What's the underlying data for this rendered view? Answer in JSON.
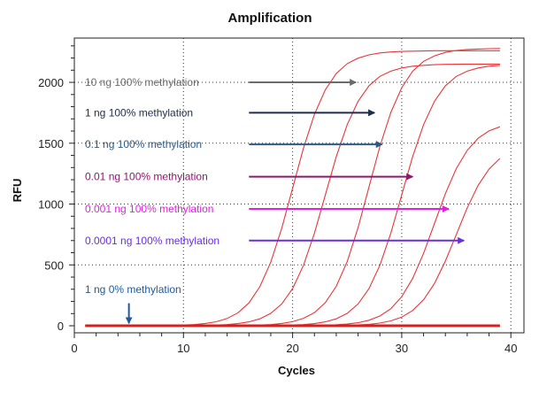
{
  "chart_data": {
    "type": "line",
    "title": "Amplification",
    "xlabel": "Cycles",
    "ylabel": "RFU",
    "xlim": [
      0,
      41.2
    ],
    "ylim": [
      -58,
      2364
    ],
    "xticks": [
      0,
      10,
      20,
      30,
      40
    ],
    "yticks": [
      0,
      500,
      1000,
      1500,
      2000
    ],
    "grid": "dotted",
    "line_color": "#e8363a",
    "baseline_color": "#d42020",
    "x": [
      1,
      2,
      3,
      4,
      5,
      6,
      7,
      8,
      9,
      10,
      11,
      12,
      13,
      14,
      15,
      16,
      17,
      18,
      19,
      20,
      21,
      22,
      23,
      24,
      25,
      26,
      27,
      28,
      29,
      30,
      31,
      32,
      33,
      34,
      35,
      36,
      37,
      38,
      39
    ],
    "series": [
      {
        "values": [
          0,
          0,
          0,
          0,
          0,
          0,
          0,
          0,
          0,
          6,
          10,
          19,
          33,
          60,
          107,
          188,
          321,
          522,
          800,
          1130,
          1460,
          1738,
          1939,
          2072,
          2154,
          2199,
          2226,
          2242,
          2250,
          2254,
          2256,
          2258,
          2260,
          2260,
          2260,
          2260,
          2260,
          2260,
          2260
        ]
      },
      {
        "values": [
          0,
          0,
          0,
          0,
          0,
          0,
          0,
          0,
          0,
          0,
          0,
          0,
          6,
          10,
          18,
          32,
          57,
          102,
          179,
          305,
          497,
          761,
          1075,
          1389,
          1653,
          1845,
          1972,
          2049,
          2092,
          2118,
          2133,
          2140,
          2145,
          2148,
          2149,
          2150,
          2150,
          2150,
          2150
        ]
      },
      {
        "values": [
          0,
          0,
          0,
          0,
          0,
          0,
          0,
          0,
          0,
          0,
          0,
          0,
          0,
          0,
          0,
          0,
          6,
          10,
          19,
          34,
          61,
          108,
          190,
          324,
          527,
          807,
          1140,
          1473,
          1753,
          1956,
          2091,
          2173,
          2218,
          2246,
          2262,
          2270,
          2274,
          2277,
          2278
        ]
      },
      {
        "values": [
          0,
          0,
          0,
          0,
          0,
          0,
          0,
          0,
          0,
          0,
          0,
          0,
          0,
          0,
          0,
          0,
          0,
          0,
          0,
          6,
          10,
          18,
          32,
          57,
          102,
          179,
          305,
          497,
          761,
          1075,
          1389,
          1653,
          1845,
          1972,
          2049,
          2092,
          2118,
          2133,
          2140
        ]
      },
      {
        "values": [
          0,
          0,
          0,
          0,
          0,
          0,
          0,
          0,
          0,
          0,
          0,
          0,
          0,
          0,
          0,
          0,
          0,
          0,
          0,
          0,
          0,
          0,
          4,
          8,
          14,
          25,
          45,
          80,
          140,
          239,
          388,
          595,
          840,
          1085,
          1292,
          1441,
          1541,
          1601,
          1635
        ]
      },
      {
        "values": [
          0,
          0,
          0,
          0,
          0,
          0,
          0,
          0,
          0,
          0,
          0,
          0,
          0,
          0,
          0,
          0,
          0,
          0,
          0,
          0,
          0,
          0,
          0,
          0,
          0,
          7,
          12,
          22,
          40,
          71,
          125,
          213,
          347,
          531,
          750,
          969,
          1154,
          1287,
          1375
        ]
      },
      {
        "values": [
          0,
          0,
          0,
          0,
          0,
          0,
          0,
          0,
          0,
          0,
          0,
          0,
          0,
          0,
          0,
          0,
          0,
          0,
          0,
          0,
          0,
          0,
          0,
          0,
          0,
          0,
          0,
          0,
          0,
          0,
          0,
          0,
          0,
          0,
          0,
          0,
          0,
          0,
          0
        ],
        "baseline": true
      }
    ],
    "annotations": [
      {
        "text": "10 ng 100% methylation",
        "color": "#6b6b6b",
        "y": 2000,
        "arrow_from": 16,
        "arrow_to": 25.8
      },
      {
        "text": "1 ng 100% methylation",
        "color": "#1f2d4a",
        "y": 1750,
        "arrow_from": 16,
        "arrow_to": 27.5
      },
      {
        "text": "0.1 ng 100% methylation",
        "color": "#2e5a80",
        "y": 1490,
        "arrow_from": 16,
        "arrow_to": 28.2
      },
      {
        "text": "0.01 ng 100% methylation",
        "color": "#8b1a6e",
        "y": 1225,
        "arrow_from": 16,
        "arrow_to": 31
      },
      {
        "text": "0.001 ng 100% methylation",
        "color": "#e020e0",
        "y": 960,
        "arrow_from": 16,
        "arrow_to": 34.3
      },
      {
        "text": "0.0001 ng 100% methylation",
        "color": "#6a2ee0",
        "y": 700,
        "arrow_from": 16,
        "arrow_to": 35.7
      },
      {
        "text": "1 ng 0% methylation",
        "color": "#1f5a9a",
        "y": 300,
        "down_arrow_x": 5,
        "down_arrow_from": 185,
        "down_arrow_to": 20
      }
    ]
  }
}
